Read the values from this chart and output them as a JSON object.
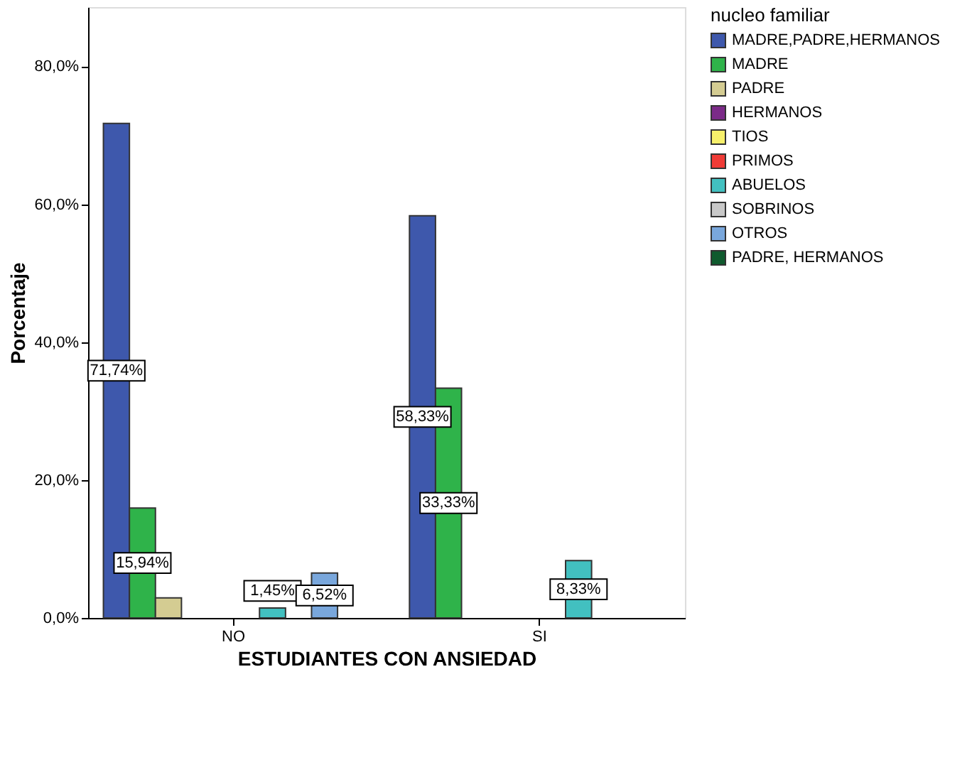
{
  "chart_data": {
    "type": "bar",
    "xlabel": "ESTUDIANTES CON ANSIEDAD",
    "ylabel": "Porcentaje",
    "legend_title": "nucleo familiar",
    "categories": [
      "NO",
      "SI"
    ],
    "ylim": [
      0,
      88.6
    ],
    "yticks": [
      {
        "value": 0,
        "label": "0,0%"
      },
      {
        "value": 20,
        "label": "20,0%"
      },
      {
        "value": 40,
        "label": "40,0%"
      },
      {
        "value": 60,
        "label": "60,0%"
      },
      {
        "value": 80,
        "label": "80,0%"
      }
    ],
    "grid": false,
    "legend": "right",
    "series": [
      {
        "name": "MADRE,PADRE,HERMANOS",
        "color": "#3e58ac",
        "values": [
          71.74,
          58.33
        ],
        "value_labels": [
          "71,74%",
          "58,33%"
        ]
      },
      {
        "name": "MADRE",
        "color": "#2fb34a",
        "values": [
          15.94,
          33.33
        ],
        "value_labels": [
          "15,94%",
          "33,33%"
        ]
      },
      {
        "name": "PADRE",
        "color": "#d4cc92",
        "values": [
          2.9,
          null
        ],
        "value_labels": [
          null,
          null
        ]
      },
      {
        "name": "HERMANOS",
        "color": "#7b2a88",
        "values": [
          null,
          null
        ],
        "value_labels": [
          null,
          null
        ]
      },
      {
        "name": "TIOS",
        "color": "#f7f06b",
        "values": [
          null,
          null
        ],
        "value_labels": [
          null,
          null
        ]
      },
      {
        "name": "PRIMOS",
        "color": "#ef3b36",
        "values": [
          null,
          null
        ],
        "value_labels": [
          null,
          null
        ]
      },
      {
        "name": "ABUELOS",
        "color": "#42c0c0",
        "values": [
          1.45,
          8.33
        ],
        "value_labels": [
          "1,45%",
          "8,33%"
        ]
      },
      {
        "name": "SOBRINOS",
        "color": "#c8c8c8",
        "values": [
          null,
          null
        ],
        "value_labels": [
          null,
          null
        ]
      },
      {
        "name": "OTROS",
        "color": "#79a7dc",
        "values": [
          6.52,
          null
        ],
        "value_labels": [
          "6,52%",
          null
        ]
      },
      {
        "name": "PADRE, HERMANOS",
        "color": "#0f5a2e",
        "values": [
          null,
          null
        ],
        "value_labels": [
          null,
          null
        ]
      }
    ]
  }
}
